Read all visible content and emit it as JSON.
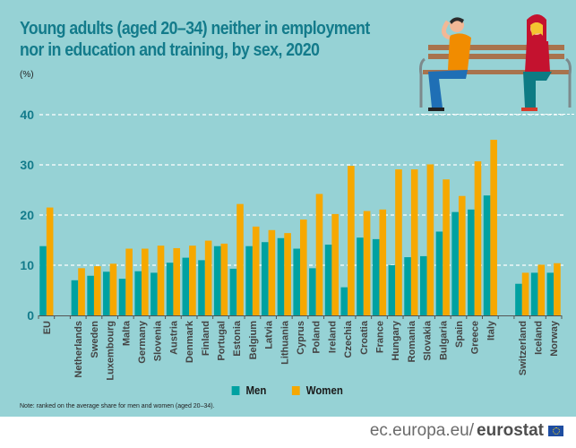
{
  "header": {
    "title_line1": "Young adults (aged 20–34) neither in employment",
    "title_line2": "nor in education and training, by sex, 2020",
    "unit": "(%)"
  },
  "illustration": {
    "description": "man and woman sitting on a park bench"
  },
  "colors": {
    "men": "#00a1a1",
    "women": "#f6a800",
    "title": "#137b8b",
    "background": "#96d2d5"
  },
  "chart_data": {
    "type": "bar",
    "title": "Young adults (aged 20–34) neither in employment nor in education and training, by sex, 2020",
    "ylabel": "(%)",
    "xlabel": "",
    "ylim": [
      0,
      40
    ],
    "yticks": [
      0,
      10,
      20,
      30,
      40
    ],
    "grid": true,
    "legend_position": "bottom-center",
    "categories": [
      "EU",
      "",
      "Netherlands",
      "Sweden",
      "Luxembourg",
      "Malta",
      "Germany",
      "Slovenia",
      "Austria",
      "Denmark",
      "Finland",
      "Portugal",
      "Estonia",
      "Belgium",
      "Latvia",
      "Lithuania",
      "Cyprus",
      "Poland",
      "Ireland",
      "Czechia",
      "Croatia",
      "France",
      "Hungary",
      "Romania",
      "Slovakia",
      "Bulgaria",
      "Spain",
      "Greece",
      "Italy",
      "",
      "Switzerland",
      "Iceland",
      "Norway"
    ],
    "series": [
      {
        "name": "Men",
        "values": [
          13.8,
          null,
          7.0,
          7.9,
          8.7,
          7.3,
          8.8,
          8.5,
          10.5,
          11.5,
          11.0,
          13.8,
          9.3,
          13.8,
          14.6,
          15.4,
          13.3,
          9.4,
          14.1,
          5.6,
          15.5,
          15.2,
          10.0,
          11.6,
          11.8,
          16.7,
          20.6,
          21.1,
          23.9,
          null,
          6.3,
          8.5,
          8.5
        ]
      },
      {
        "name": "Women",
        "values": [
          21.5,
          null,
          9.4,
          9.8,
          10.3,
          13.3,
          13.3,
          13.9,
          13.4,
          13.9,
          14.9,
          14.3,
          22.2,
          17.7,
          17.0,
          16.4,
          19.1,
          24.2,
          20.2,
          29.8,
          20.8,
          21.1,
          29.1,
          29.1,
          30.1,
          27.1,
          23.8,
          30.7,
          35.0,
          null,
          8.5,
          10.1,
          10.4
        ]
      }
    ]
  },
  "legend": {
    "men": "Men",
    "women": "Women"
  },
  "note": "Note: ranked on the average share for men and women (aged 20–34).",
  "footer": {
    "domain": "ec.europa.eu/",
    "brand": "eurostat"
  }
}
